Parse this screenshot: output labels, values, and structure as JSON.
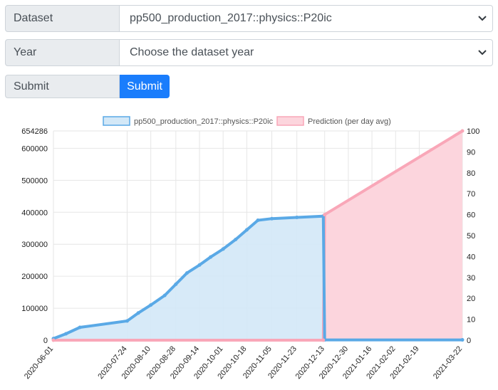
{
  "form": {
    "dataset_label": "Dataset",
    "dataset_value": "pp500_production_2017::physics::P20ic",
    "year_label": "Year",
    "year_value": "Choose the dataset year",
    "submit_label": "Submit",
    "submit_button": "Submit"
  },
  "colors": {
    "actual_line": "#5aa9e6",
    "actual_fill": "#d3e8f7",
    "prediction_line": "#f9a7b8",
    "prediction_fill": "#fcd5dd",
    "primary_button": "#1a7dfc"
  },
  "chart_data": {
    "type": "line",
    "legend": [
      {
        "name": "pp500_production_2017::physics::P20ic",
        "color": "#5aa9e6",
        "fill": "#d3e8f7"
      },
      {
        "name": "Prediction (per day avg)",
        "color": "#f9a7b8",
        "fill": "#fcd5dd"
      }
    ],
    "legend_position": "top",
    "grid": true,
    "y_left": {
      "ylim": [
        0,
        654286
      ],
      "ticks": [
        0,
        100000,
        200000,
        300000,
        400000,
        500000,
        600000
      ],
      "max_label": "654286"
    },
    "y_right": {
      "ylim": [
        0,
        100
      ],
      "ticks": [
        0,
        10,
        20,
        30,
        40,
        50,
        60,
        70,
        80,
        90,
        100
      ]
    },
    "x_ticks": [
      "2020-06-01",
      "2020-07-24",
      "2020-08-10",
      "2020-08-28",
      "2020-09-14",
      "2020-10-01",
      "2020-10-18",
      "2020-11-05",
      "2020-11-23",
      "2020-12-13",
      "2020-12-30",
      "2021-01-16",
      "2021-02-02",
      "2021-02-19",
      "2021-03-22"
    ],
    "series": [
      {
        "name": "pp500_production_2017::physics::P20ic",
        "axis": "left",
        "points": [
          [
            "2020-06-01",
            5000
          ],
          [
            "2020-06-10",
            20000
          ],
          [
            "2020-06-20",
            40000
          ],
          [
            "2020-07-24",
            60000
          ],
          [
            "2020-08-01",
            85000
          ],
          [
            "2020-08-10",
            110000
          ],
          [
            "2020-08-20",
            140000
          ],
          [
            "2020-08-28",
            175000
          ],
          [
            "2020-09-05",
            210000
          ],
          [
            "2020-09-14",
            235000
          ],
          [
            "2020-09-22",
            260000
          ],
          [
            "2020-10-01",
            285000
          ],
          [
            "2020-10-10",
            315000
          ],
          [
            "2020-10-18",
            345000
          ],
          [
            "2020-10-26",
            375000
          ],
          [
            "2020-11-05",
            380000
          ],
          [
            "2020-11-23",
            384000
          ],
          [
            "2020-12-12",
            388000
          ],
          [
            "2020-12-13",
            1000
          ],
          [
            "2021-03-22",
            1000
          ]
        ]
      },
      {
        "name": "Prediction (per day avg)",
        "axis": "right",
        "points": [
          [
            "2020-06-01",
            0
          ],
          [
            "2020-12-12",
            0
          ],
          [
            "2020-12-13",
            60
          ],
          [
            "2021-03-22",
            100
          ]
        ]
      }
    ]
  }
}
